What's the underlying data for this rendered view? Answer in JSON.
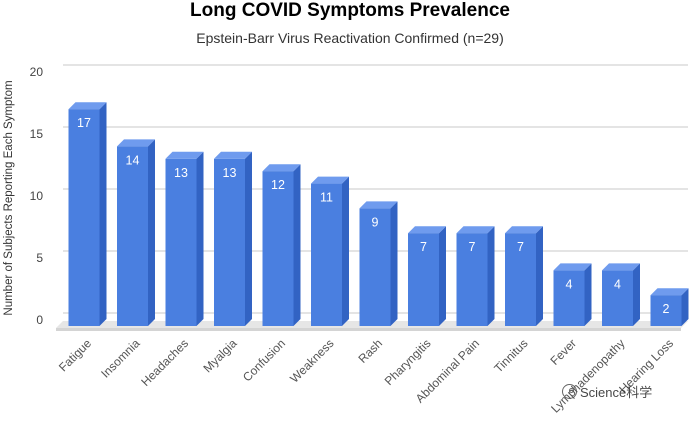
{
  "chart_data": {
    "type": "bar",
    "title": "Long COVID Symptoms Prevalence",
    "subtitle": "Epstein-Barr Virus Reactivation Confirmed (n=29)",
    "xlabel": "",
    "ylabel": "Number of Subjects Reporting Each Symptom",
    "ylim": [
      0,
      20
    ],
    "yticks": [
      0,
      5,
      10,
      15,
      20
    ],
    "grid": true,
    "categories": [
      "Fatigue",
      "Insomnia",
      "Headaches",
      "Myalgia",
      "Confusion",
      "Weakness",
      "Rash",
      "Pharyngitis",
      "Abdominal Pain",
      "Tinnitus",
      "Fever",
      "Lymphadenopathy",
      "Hearing Loss"
    ],
    "values": [
      17,
      14,
      13,
      13,
      12,
      11,
      9,
      7,
      7,
      7,
      4,
      4,
      2
    ],
    "colors": {
      "bar_front": "#4a7fe0",
      "bar_side": "#3263c3",
      "bar_top": "#6f9bee",
      "grid": "#c8c8c8",
      "floor": "#e6e6e6"
    }
  },
  "watermark": {
    "text": "Science科学",
    "icon": "chat-bubble-icon"
  }
}
